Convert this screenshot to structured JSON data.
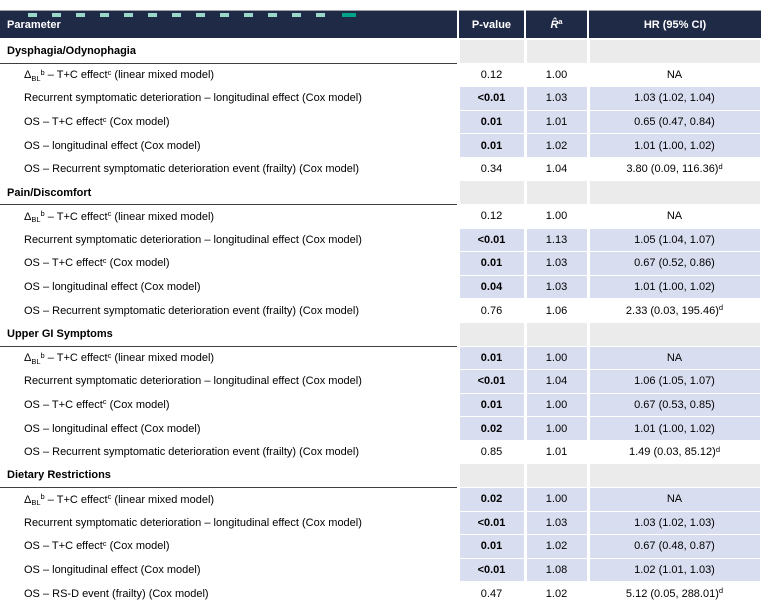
{
  "accent_colors": {
    "header_navy": "#1f2a47",
    "significant_row_lavender": "#d9ddf0",
    "section_row_gray": "#ebebeb",
    "remnant_teal": "#9ad6c9",
    "remnant_green": "#00a385"
  },
  "table": {
    "columns": [
      {
        "key": "parameter",
        "label": "Parameter"
      },
      {
        "key": "p",
        "label": "P-value"
      },
      {
        "key": "r",
        "label_parts": [
          {
            "i": "R̂"
          },
          {
            "sup": "a"
          }
        ]
      },
      {
        "key": "hr",
        "label": "HR (95% CI)"
      }
    ],
    "sections": [
      {
        "title": "Dysphagia/Odynophagia",
        "rows": [
          {
            "parameter_parts": [
              {
                "t": "Δ"
              },
              {
                "sub": "BL"
              },
              {
                "sup": "b"
              },
              {
                "t": " – T+C effect"
              },
              {
                "sup": "c"
              },
              {
                "t": " (linear mixed model)"
              }
            ],
            "p": "0.12",
            "r": "1.00",
            "hr_parts": [
              {
                "t": "NA"
              }
            ],
            "significant": false
          },
          {
            "parameter_parts": [
              {
                "t": "Recurrent symptomatic deterioration – longitudinal effect (Cox model)"
              }
            ],
            "p": "<0.01",
            "r": "1.03",
            "hr_parts": [
              {
                "t": "1.03 (1.02, 1.04)"
              }
            ],
            "significant": true
          },
          {
            "parameter_parts": [
              {
                "t": "OS – T+C effect"
              },
              {
                "sup": "c"
              },
              {
                "t": " (Cox model)"
              }
            ],
            "p": "0.01",
            "r": "1.01",
            "hr_parts": [
              {
                "t": "0.65 (0.47, 0.84)"
              }
            ],
            "significant": true
          },
          {
            "parameter_parts": [
              {
                "t": "OS – longitudinal effect (Cox model)"
              }
            ],
            "p": "0.01",
            "r": "1.02",
            "hr_parts": [
              {
                "t": "1.01 (1.00, 1.02)"
              }
            ],
            "significant": true
          },
          {
            "parameter_parts": [
              {
                "t": "OS – Recurrent symptomatic deterioration event (frailty) (Cox model)"
              }
            ],
            "p": "0.34",
            "r": "1.04",
            "hr_parts": [
              {
                "t": "3.80 (0.09, 116.36)"
              },
              {
                "sup": "d"
              }
            ],
            "significant": false
          }
        ]
      },
      {
        "title": "Pain/Discomfort",
        "rows": [
          {
            "parameter_parts": [
              {
                "t": "Δ"
              },
              {
                "sub": "BL"
              },
              {
                "sup": "b"
              },
              {
                "t": " – T+C effect"
              },
              {
                "sup": "c"
              },
              {
                "t": " (linear mixed model)"
              }
            ],
            "p": "0.12",
            "r": "1.00",
            "hr_parts": [
              {
                "t": "NA"
              }
            ],
            "significant": false
          },
          {
            "parameter_parts": [
              {
                "t": "Recurrent symptomatic deterioration – longitudinal effect (Cox model)"
              }
            ],
            "p": "<0.01",
            "r": "1.13",
            "hr_parts": [
              {
                "t": "1.05 (1.04, 1.07)"
              }
            ],
            "significant": true
          },
          {
            "parameter_parts": [
              {
                "t": "OS – T+C effect"
              },
              {
                "sup": "c"
              },
              {
                "t": " (Cox model)"
              }
            ],
            "p": "0.01",
            "r": "1.03",
            "hr_parts": [
              {
                "t": "0.67 (0.52, 0.86)"
              }
            ],
            "significant": true
          },
          {
            "parameter_parts": [
              {
                "t": "OS – longitudinal effect (Cox model)"
              }
            ],
            "p": "0.04",
            "r": "1.03",
            "hr_parts": [
              {
                "t": "1.01 (1.00, 1.02)"
              }
            ],
            "significant": true
          },
          {
            "parameter_parts": [
              {
                "t": "OS – Recurrent symptomatic deterioration event (frailty) (Cox model)"
              }
            ],
            "p": "0.76",
            "r": "1.06",
            "hr_parts": [
              {
                "t": "2.33 (0.03, 195.46)"
              },
              {
                "sup": "d"
              }
            ],
            "significant": false
          }
        ]
      },
      {
        "title": "Upper GI Symptoms",
        "rows": [
          {
            "parameter_parts": [
              {
                "t": "Δ"
              },
              {
                "sub": "BL"
              },
              {
                "sup": "b"
              },
              {
                "t": " – T+C effect"
              },
              {
                "sup": "c"
              },
              {
                "t": " (linear mixed model)"
              }
            ],
            "p": "0.01",
            "r": "1.00",
            "hr_parts": [
              {
                "t": "NA"
              }
            ],
            "significant": true
          },
          {
            "parameter_parts": [
              {
                "t": "Recurrent symptomatic deterioration – longitudinal effect (Cox model)"
              }
            ],
            "p": "<0.01",
            "r": "1.04",
            "hr_parts": [
              {
                "t": "1.06 (1.05, 1.07)"
              }
            ],
            "significant": true
          },
          {
            "parameter_parts": [
              {
                "t": "OS – T+C effect"
              },
              {
                "sup": "c"
              },
              {
                "t": " (Cox model)"
              }
            ],
            "p": "0.01",
            "r": "1.00",
            "hr_parts": [
              {
                "t": "0.67 (0.53, 0.85)"
              }
            ],
            "significant": true
          },
          {
            "parameter_parts": [
              {
                "t": "OS – longitudinal effect (Cox model)"
              }
            ],
            "p": "0.02",
            "r": "1.00",
            "hr_parts": [
              {
                "t": "1.01 (1.00, 1.02)"
              }
            ],
            "significant": true
          },
          {
            "parameter_parts": [
              {
                "t": "OS – Recurrent symptomatic deterioration event (frailty) (Cox model)"
              }
            ],
            "p": "0.85",
            "r": "1.01",
            "hr_parts": [
              {
                "t": "1.49 (0.03, 85.12)"
              },
              {
                "sup": "d"
              }
            ],
            "significant": false
          }
        ]
      },
      {
        "title": "Dietary Restrictions",
        "rows": [
          {
            "parameter_parts": [
              {
                "t": "Δ"
              },
              {
                "sub": "BL"
              },
              {
                "sup": "b"
              },
              {
                "t": " – T+C effect"
              },
              {
                "sup": "c"
              },
              {
                "t": " (linear mixed model)"
              }
            ],
            "p": "0.02",
            "r": "1.00",
            "hr_parts": [
              {
                "t": "NA"
              }
            ],
            "significant": true
          },
          {
            "parameter_parts": [
              {
                "t": "Recurrent symptomatic deterioration – longitudinal effect (Cox model)"
              }
            ],
            "p": "<0.01",
            "r": "1.03",
            "hr_parts": [
              {
                "t": "1.03 (1.02, 1.03)"
              }
            ],
            "significant": true
          },
          {
            "parameter_parts": [
              {
                "t": "OS – T+C effect"
              },
              {
                "sup": "c"
              },
              {
                "t": " (Cox model)"
              }
            ],
            "p": "0.01",
            "r": "1.02",
            "hr_parts": [
              {
                "t": "0.67 (0.48, 0.87)"
              }
            ],
            "significant": true
          },
          {
            "parameter_parts": [
              {
                "t": "OS – longitudinal effect (Cox model)"
              }
            ],
            "p": "<0.01",
            "r": "1.08",
            "hr_parts": [
              {
                "t": "1.02 (1.01, 1.03)"
              }
            ],
            "significant": true
          },
          {
            "parameter_parts": [
              {
                "t": "OS – RS-D event (frailty) (Cox model)"
              }
            ],
            "p": "0.47",
            "r": "1.02",
            "hr_parts": [
              {
                "t": "5.12 (0.05, 288.01)"
              },
              {
                "sup": "d"
              }
            ],
            "significant": false
          }
        ]
      }
    ]
  }
}
